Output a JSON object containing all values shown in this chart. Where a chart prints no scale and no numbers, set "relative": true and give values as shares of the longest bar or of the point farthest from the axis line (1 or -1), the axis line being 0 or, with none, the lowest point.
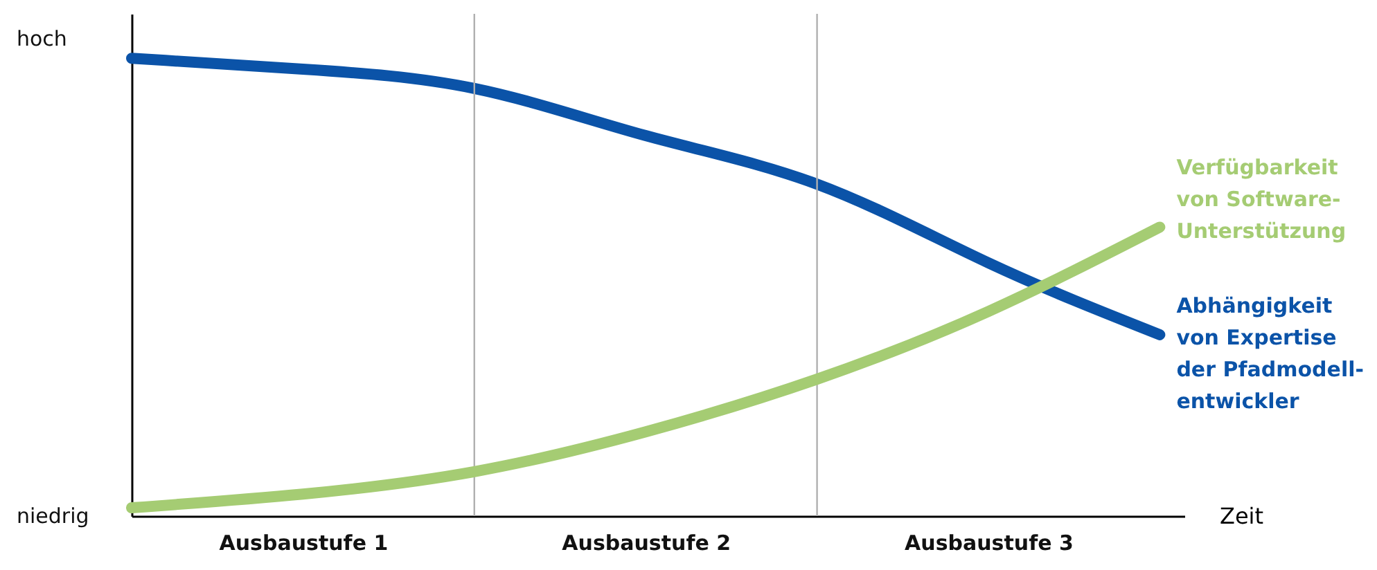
{
  "chart_data": {
    "type": "line",
    "relative": true,
    "xlabel": "Zeit",
    "categories": [
      null,
      "Ausbaustufe 1",
      null,
      "Ausbaustufe 2",
      null,
      "Ausbaustufe 3",
      null
    ],
    "annotations": [
      "hoch",
      "niedrig"
    ],
    "series": [
      {
        "name": "Abhängigkeit\nvon Expertise\nder Pfadmodell-\nentwickler",
        "color": "#0b53a8",
        "values": [
          1,
          0.976,
          0.934,
          0.831,
          0.725,
          0.553,
          0.396
        ]
      },
      {
        "name": "Verfügbarkeit\nvon Software-\nUnterstützung",
        "color": "#a5cc73",
        "values": [
          0.018,
          0.048,
          0.097,
          0.184,
          0.299,
          0.447,
          0.631
        ]
      }
    ],
    "grid": "x",
    "legend": false,
    "marker": "none",
    "line_style": "solid"
  }
}
